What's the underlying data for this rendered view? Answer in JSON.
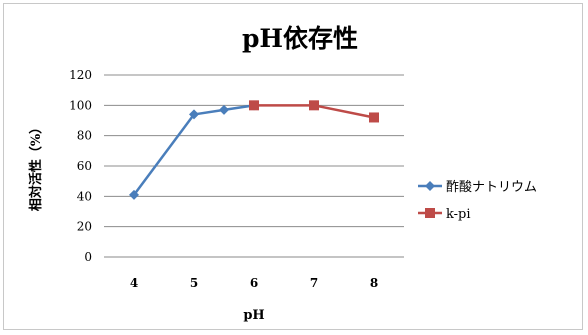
{
  "chart_data": {
    "type": "line",
    "title": "pH依存性",
    "xlabel": "pH",
    "ylabel": "相対活性（%）",
    "categories": [
      "4",
      "5",
      "6",
      "7",
      "8"
    ],
    "yticks": [
      "0",
      "20",
      "40",
      "60",
      "80",
      "100",
      "120"
    ],
    "ylim": [
      0,
      120
    ],
    "grid": true,
    "legend_position": "right",
    "series": [
      {
        "name": "酢酸ナトリウム",
        "color": "#4a7ebb",
        "marker": "diamond",
        "points": [
          {
            "x": "4",
            "y": 41
          },
          {
            "x": "5",
            "y": 94
          },
          {
            "x": "5.5",
            "y": 97
          },
          {
            "x": "6",
            "y": 100
          }
        ]
      },
      {
        "name": "k-pi",
        "color": "#be4b48",
        "marker": "square",
        "points": [
          {
            "x": "6",
            "y": 100
          },
          {
            "x": "7",
            "y": 100
          },
          {
            "x": "8",
            "y": 92
          }
        ]
      }
    ]
  }
}
